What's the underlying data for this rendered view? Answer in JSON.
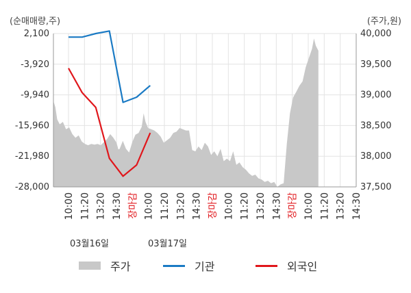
{
  "chart_data": {
    "type": "line",
    "left_axis_unit": "(순매매량,주)",
    "right_axis_unit": "(주가,원)",
    "left_ticks": [
      "2,100",
      "-3,920",
      "-9,940",
      "-15,960",
      "-21,980",
      "-28,000"
    ],
    "left_tick_values": [
      2100,
      -3920,
      -9940,
      -15960,
      -21980,
      -28000
    ],
    "right_ticks": [
      "40,000",
      "39,500",
      "39,000",
      "38,500",
      "38,000",
      "37,500"
    ],
    "right_tick_values": [
      40000,
      39500,
      39000,
      38500,
      38000,
      37500
    ],
    "left_ylim": [
      -28000,
      2100
    ],
    "right_ylim": [
      37500,
      40000
    ],
    "x_ticks": [
      "10:00",
      "11:20",
      "13:20",
      "14:30",
      "장마감",
      "10:00",
      "11:20",
      "13:20",
      "14:30",
      "장마감",
      "10:00",
      "11:20",
      "13:20",
      "14:30",
      "장마감",
      "10:00",
      "11:20",
      "13:20",
      "14:30"
    ],
    "x_tick_highlight": [
      false,
      false,
      false,
      false,
      true,
      false,
      false,
      false,
      false,
      true,
      false,
      false,
      false,
      false,
      true,
      false,
      false,
      false,
      false
    ],
    "dates": [
      "03월16일",
      "03월17일"
    ],
    "legend": [
      "주가",
      "기관",
      "외국인"
    ],
    "colors": {
      "price": "#c8c8c8",
      "institution": "#1a7ac4",
      "foreign": "#e0161b",
      "grid": "#e3e3e3",
      "axis": "#999999",
      "highlight_label": "#e0161b"
    },
    "price_series": [
      [
        0,
        38900
      ],
      [
        0.3,
        38800
      ],
      [
        0.6,
        38600
      ],
      [
        1,
        38520
      ],
      [
        1.5,
        38560
      ],
      [
        2,
        38440
      ],
      [
        2.5,
        38470
      ],
      [
        3,
        38360
      ],
      [
        3.5,
        38300
      ],
      [
        4,
        38340
      ],
      [
        4.5,
        38240
      ],
      [
        5,
        38200
      ],
      [
        5.5,
        38180
      ],
      [
        6,
        38200
      ],
      [
        6.5,
        38190
      ],
      [
        7,
        38200
      ],
      [
        7.5,
        38180
      ],
      [
        8,
        38230
      ],
      [
        8.5,
        38280
      ],
      [
        9,
        38360
      ],
      [
        9.5,
        38300
      ],
      [
        10,
        38220
      ],
      [
        10.3,
        38110
      ],
      [
        10.5,
        38120
      ],
      [
        11,
        38250
      ],
      [
        11.5,
        38120
      ],
      [
        12,
        38060
      ],
      [
        12.5,
        38230
      ],
      [
        13,
        38350
      ],
      [
        13.5,
        38380
      ],
      [
        14,
        38480
      ],
      [
        14.3,
        38700
      ],
      [
        14.6,
        38560
      ],
      [
        15,
        38460
      ],
      [
        15.5,
        38440
      ],
      [
        16,
        38420
      ],
      [
        16.5,
        38380
      ],
      [
        17,
        38320
      ],
      [
        17.5,
        38220
      ],
      [
        18,
        38260
      ],
      [
        18.5,
        38300
      ],
      [
        19,
        38380
      ],
      [
        19.5,
        38400
      ],
      [
        20,
        38460
      ],
      [
        20.5,
        38440
      ],
      [
        21,
        38420
      ],
      [
        21.5,
        38420
      ],
      [
        22,
        38100
      ],
      [
        22.5,
        38080
      ],
      [
        23,
        38160
      ],
      [
        23.5,
        38100
      ],
      [
        24,
        38220
      ],
      [
        24.5,
        38160
      ],
      [
        25,
        38020
      ],
      [
        25.5,
        38080
      ],
      [
        26,
        38000
      ],
      [
        26.5,
        38120
      ],
      [
        27,
        37920
      ],
      [
        27.5,
        37960
      ],
      [
        28,
        37920
      ],
      [
        28.5,
        38080
      ],
      [
        29,
        37860
      ],
      [
        29.5,
        37900
      ],
      [
        30,
        37820
      ],
      [
        30.5,
        37780
      ],
      [
        31,
        37720
      ],
      [
        31.5,
        37680
      ],
      [
        32,
        37700
      ],
      [
        32.5,
        37640
      ],
      [
        33,
        37620
      ],
      [
        33.5,
        37580
      ],
      [
        34,
        37600
      ],
      [
        34.5,
        37560
      ],
      [
        35,
        37580
      ],
      [
        35.5,
        37500
      ],
      [
        36,
        37540
      ],
      [
        36.5,
        37560
      ],
      [
        37,
        38200
      ],
      [
        37.5,
        38700
      ],
      [
        38,
        38960
      ],
      [
        38.5,
        39050
      ],
      [
        39,
        39150
      ],
      [
        39.5,
        39220
      ],
      [
        40,
        39450
      ],
      [
        40.5,
        39600
      ],
      [
        41,
        39750
      ],
      [
        41.3,
        39920
      ],
      [
        41.6,
        39800
      ],
      [
        42,
        39720
      ]
    ],
    "price_x_max": 48,
    "series": [
      {
        "name": "기관",
        "values": [
          [
            0,
            1400
          ],
          [
            2,
            1400
          ],
          [
            4,
            2100
          ],
          [
            6,
            2600
          ],
          [
            8,
            -11400
          ],
          [
            10,
            -10400
          ],
          [
            12,
            -8100
          ]
        ]
      },
      {
        "name": "외국인",
        "values": [
          [
            0,
            -4700
          ],
          [
            2,
            -9500
          ],
          [
            4,
            -12400
          ],
          [
            6,
            -22400
          ],
          [
            8,
            -25900
          ],
          [
            10,
            -23700
          ],
          [
            12,
            -17400
          ]
        ]
      }
    ],
    "institution_x_max": 48,
    "grid": true
  }
}
